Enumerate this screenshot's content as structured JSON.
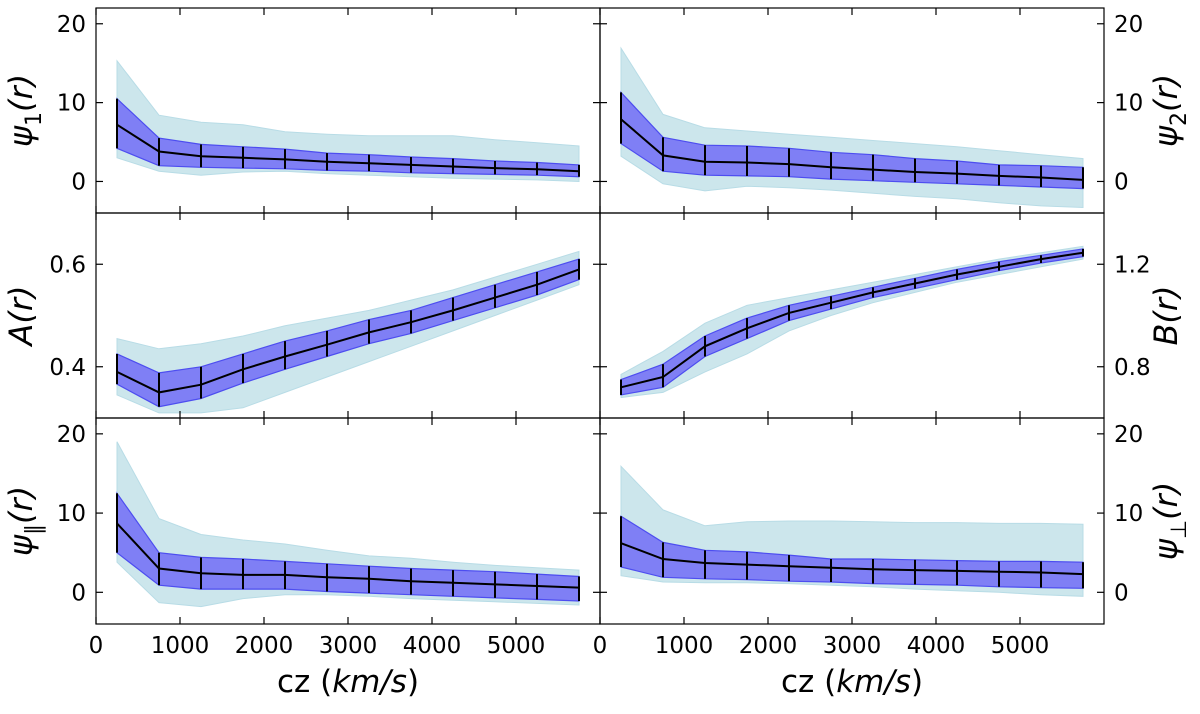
{
  "figure": {
    "xlabel_prefix": "cz (",
    "xlabel_unit": "km/s",
    "xlabel_suffix": ")",
    "colors": {
      "outer_band": "#cce6ec",
      "inner_band": "#7f7ff5",
      "inner_edge": "#4d4df0",
      "line": "#000000"
    }
  },
  "chart_data": [
    {
      "type": "line",
      "id": "psi1",
      "ylabel": "ψ1(r)",
      "ylabel_main": "ψ",
      "ylabel_sub": "1",
      "ylabel_tail": "(r)",
      "ylabel_side": "left",
      "xlim": [
        0,
        6000
      ],
      "ylim": [
        -4,
        22
      ],
      "yticks": [
        0,
        10,
        20
      ],
      "ytick_labels": [
        "0",
        "10",
        "20"
      ],
      "x": [
        250,
        750,
        1250,
        1750,
        2250,
        2750,
        3250,
        3750,
        4250,
        4750,
        5250,
        5750
      ],
      "y": [
        7.2,
        3.8,
        3.2,
        3.0,
        2.8,
        2.5,
        2.3,
        2.1,
        1.9,
        1.7,
        1.55,
        1.3
      ],
      "err_low": [
        4.2,
        2.0,
        1.8,
        1.7,
        1.6,
        1.4,
        1.3,
        1.1,
        1.0,
        0.9,
        0.8,
        0.6
      ],
      "err_high": [
        10.5,
        5.5,
        4.7,
        4.4,
        4.1,
        3.6,
        3.4,
        3.1,
        2.9,
        2.6,
        2.4,
        2.1
      ],
      "outer_low": [
        3.0,
        1.3,
        0.8,
        1.2,
        1.3,
        1.0,
        0.8,
        0.6,
        0.4,
        0.3,
        0.2,
        0.0
      ],
      "outer_high": [
        15.3,
        8.4,
        7.5,
        7.2,
        6.3,
        6.0,
        5.8,
        5.8,
        5.8,
        5.3,
        4.9,
        4.5
      ]
    },
    {
      "type": "line",
      "id": "psi2",
      "ylabel": "ψ2(r)",
      "ylabel_main": "ψ",
      "ylabel_sub": "2",
      "ylabel_tail": "(r)",
      "ylabel_side": "right",
      "xlim": [
        0,
        6000
      ],
      "ylim": [
        -4,
        22
      ],
      "yticks": [
        0,
        10,
        20
      ],
      "ytick_labels": [
        "0",
        "10",
        "20"
      ],
      "x": [
        250,
        750,
        1250,
        1750,
        2250,
        2750,
        3250,
        3750,
        4250,
        4750,
        5250,
        5750
      ],
      "y": [
        7.9,
        3.3,
        2.5,
        2.4,
        2.2,
        1.8,
        1.5,
        1.2,
        1.0,
        0.7,
        0.5,
        0.2
      ],
      "err_low": [
        4.8,
        1.3,
        0.8,
        0.7,
        0.6,
        0.3,
        0.1,
        -0.1,
        -0.3,
        -0.5,
        -0.7,
        -0.9
      ],
      "err_high": [
        11.3,
        5.6,
        4.6,
        4.5,
        4.2,
        3.7,
        3.4,
        2.9,
        2.6,
        2.1,
        2.0,
        1.8
      ],
      "outer_low": [
        3.2,
        -0.3,
        -1.2,
        -0.6,
        -0.8,
        -1.1,
        -1.5,
        -1.9,
        -2.2,
        -2.7,
        -3.1,
        -3.3
      ],
      "outer_high": [
        16.9,
        8.5,
        6.8,
        6.4,
        6.0,
        5.6,
        5.2,
        4.8,
        4.4,
        3.9,
        3.4,
        2.9
      ]
    },
    {
      "type": "line",
      "id": "A",
      "ylabel": "A(r)",
      "ylabel_main": "A(r)",
      "ylabel_sub": "",
      "ylabel_tail": "",
      "ylabel_side": "left",
      "xlim": [
        0,
        6000
      ],
      "ylim": [
        0.3,
        0.7
      ],
      "yticks": [
        0.4,
        0.6
      ],
      "ytick_labels": [
        "0.4",
        "0.6"
      ],
      "x": [
        250,
        750,
        1250,
        1750,
        2250,
        2750,
        3250,
        3750,
        4250,
        4750,
        5250,
        5750
      ],
      "y": [
        0.39,
        0.35,
        0.365,
        0.395,
        0.42,
        0.443,
        0.467,
        0.487,
        0.51,
        0.535,
        0.56,
        0.59
      ],
      "err_low": [
        0.366,
        0.322,
        0.338,
        0.368,
        0.395,
        0.42,
        0.445,
        0.465,
        0.49,
        0.515,
        0.54,
        0.57
      ],
      "err_high": [
        0.425,
        0.388,
        0.4,
        0.425,
        0.45,
        0.47,
        0.492,
        0.51,
        0.535,
        0.56,
        0.585,
        0.61
      ],
      "outer_low": [
        0.345,
        0.31,
        0.31,
        0.32,
        0.35,
        0.38,
        0.41,
        0.44,
        0.47,
        0.5,
        0.53,
        0.56
      ],
      "outer_high": [
        0.455,
        0.435,
        0.445,
        0.46,
        0.48,
        0.495,
        0.51,
        0.53,
        0.55,
        0.575,
        0.6,
        0.625
      ]
    },
    {
      "type": "line",
      "id": "B",
      "ylabel": "B(r)",
      "ylabel_main": "B(r)",
      "ylabel_sub": "",
      "ylabel_tail": "",
      "ylabel_side": "right",
      "xlim": [
        0,
        6000
      ],
      "ylim": [
        0.6,
        1.4
      ],
      "yticks": [
        0.8,
        1.2
      ],
      "ytick_labels": [
        "0.8",
        "1.2"
      ],
      "x": [
        250,
        750,
        1250,
        1750,
        2250,
        2750,
        3250,
        3750,
        4250,
        4750,
        5250,
        5750
      ],
      "y": [
        0.72,
        0.76,
        0.88,
        0.95,
        1.01,
        1.05,
        1.09,
        1.125,
        1.16,
        1.19,
        1.22,
        1.245
      ],
      "err_low": [
        0.69,
        0.72,
        0.84,
        0.91,
        0.98,
        1.025,
        1.07,
        1.105,
        1.14,
        1.175,
        1.205,
        1.23
      ],
      "err_high": [
        0.75,
        0.81,
        0.92,
        0.99,
        1.04,
        1.075,
        1.11,
        1.145,
        1.18,
        1.21,
        1.235,
        1.26
      ],
      "outer_low": [
        0.68,
        0.7,
        0.78,
        0.85,
        0.94,
        1.0,
        1.05,
        1.09,
        1.13,
        1.16,
        1.19,
        1.22
      ],
      "outer_high": [
        0.77,
        0.86,
        0.97,
        1.04,
        1.07,
        1.1,
        1.13,
        1.16,
        1.19,
        1.22,
        1.245,
        1.27
      ]
    },
    {
      "type": "line",
      "id": "psi_par",
      "ylabel": "ψ∥(r)",
      "ylabel_main": "ψ",
      "ylabel_sub": "∥",
      "ylabel_tail": "(r)",
      "ylabel_side": "left",
      "xlim": [
        0,
        6000
      ],
      "ylim": [
        -4,
        22
      ],
      "yticks": [
        0,
        10,
        20
      ],
      "ytick_labels": [
        "0",
        "10",
        "20"
      ],
      "x": [
        250,
        750,
        1250,
        1750,
        2250,
        2750,
        3250,
        3750,
        4250,
        4750,
        5250,
        5750
      ],
      "y": [
        8.7,
        3.0,
        2.4,
        2.2,
        2.2,
        1.9,
        1.7,
        1.4,
        1.2,
        1.0,
        0.8,
        0.6
      ],
      "err_low": [
        5.0,
        0.9,
        0.4,
        0.4,
        0.4,
        0.1,
        -0.1,
        -0.3,
        -0.5,
        -0.7,
        -0.9,
        -1.1
      ],
      "err_high": [
        12.5,
        5.0,
        4.4,
        4.2,
        3.9,
        3.6,
        3.3,
        3.0,
        2.8,
        2.6,
        2.3,
        2.0
      ],
      "outer_low": [
        3.8,
        -1.3,
        -1.8,
        -0.8,
        -0.3,
        -0.3,
        -0.5,
        -0.8,
        -1.0,
        -1.2,
        -1.4,
        -1.6
      ],
      "outer_high": [
        19.0,
        9.3,
        7.3,
        6.6,
        6.1,
        5.3,
        4.6,
        4.3,
        3.8,
        3.4,
        3.1,
        2.8
      ]
    },
    {
      "type": "line",
      "id": "psi_perp",
      "ylabel": "ψ⊥(r)",
      "ylabel_main": "ψ",
      "ylabel_sub": "⊥",
      "ylabel_tail": "(r)",
      "ylabel_side": "right",
      "xlim": [
        0,
        6000
      ],
      "ylim": [
        -4,
        22
      ],
      "yticks": [
        0,
        10,
        20
      ],
      "ytick_labels": [
        "0",
        "10",
        "20"
      ],
      "x": [
        250,
        750,
        1250,
        1750,
        2250,
        2750,
        3250,
        3750,
        4250,
        4750,
        5250,
        5750
      ],
      "y": [
        6.2,
        4.2,
        3.7,
        3.5,
        3.3,
        3.1,
        2.9,
        2.8,
        2.7,
        2.6,
        2.5,
        2.3
      ],
      "err_low": [
        3.2,
        1.9,
        1.7,
        1.6,
        1.4,
        1.3,
        1.1,
        1.0,
        0.9,
        0.7,
        0.6,
        0.5
      ],
      "err_high": [
        9.6,
        6.3,
        5.3,
        5.1,
        4.7,
        4.2,
        4.2,
        4.1,
        4.0,
        3.9,
        3.9,
        3.8
      ],
      "outer_low": [
        2.1,
        1.3,
        1.2,
        1.2,
        1.1,
        0.9,
        0.7,
        0.4,
        0.2,
        0.0,
        -0.3,
        -0.5
      ],
      "outer_high": [
        15.9,
        10.4,
        8.4,
        8.9,
        9.0,
        9.0,
        8.9,
        8.8,
        8.8,
        8.7,
        8.7,
        8.6
      ]
    }
  ],
  "x_axis": {
    "xticks": [
      0,
      1000,
      2000,
      3000,
      4000,
      5000
    ],
    "xtick_labels": [
      "0",
      "1000",
      "2000",
      "3000",
      "4000",
      "5000"
    ]
  }
}
